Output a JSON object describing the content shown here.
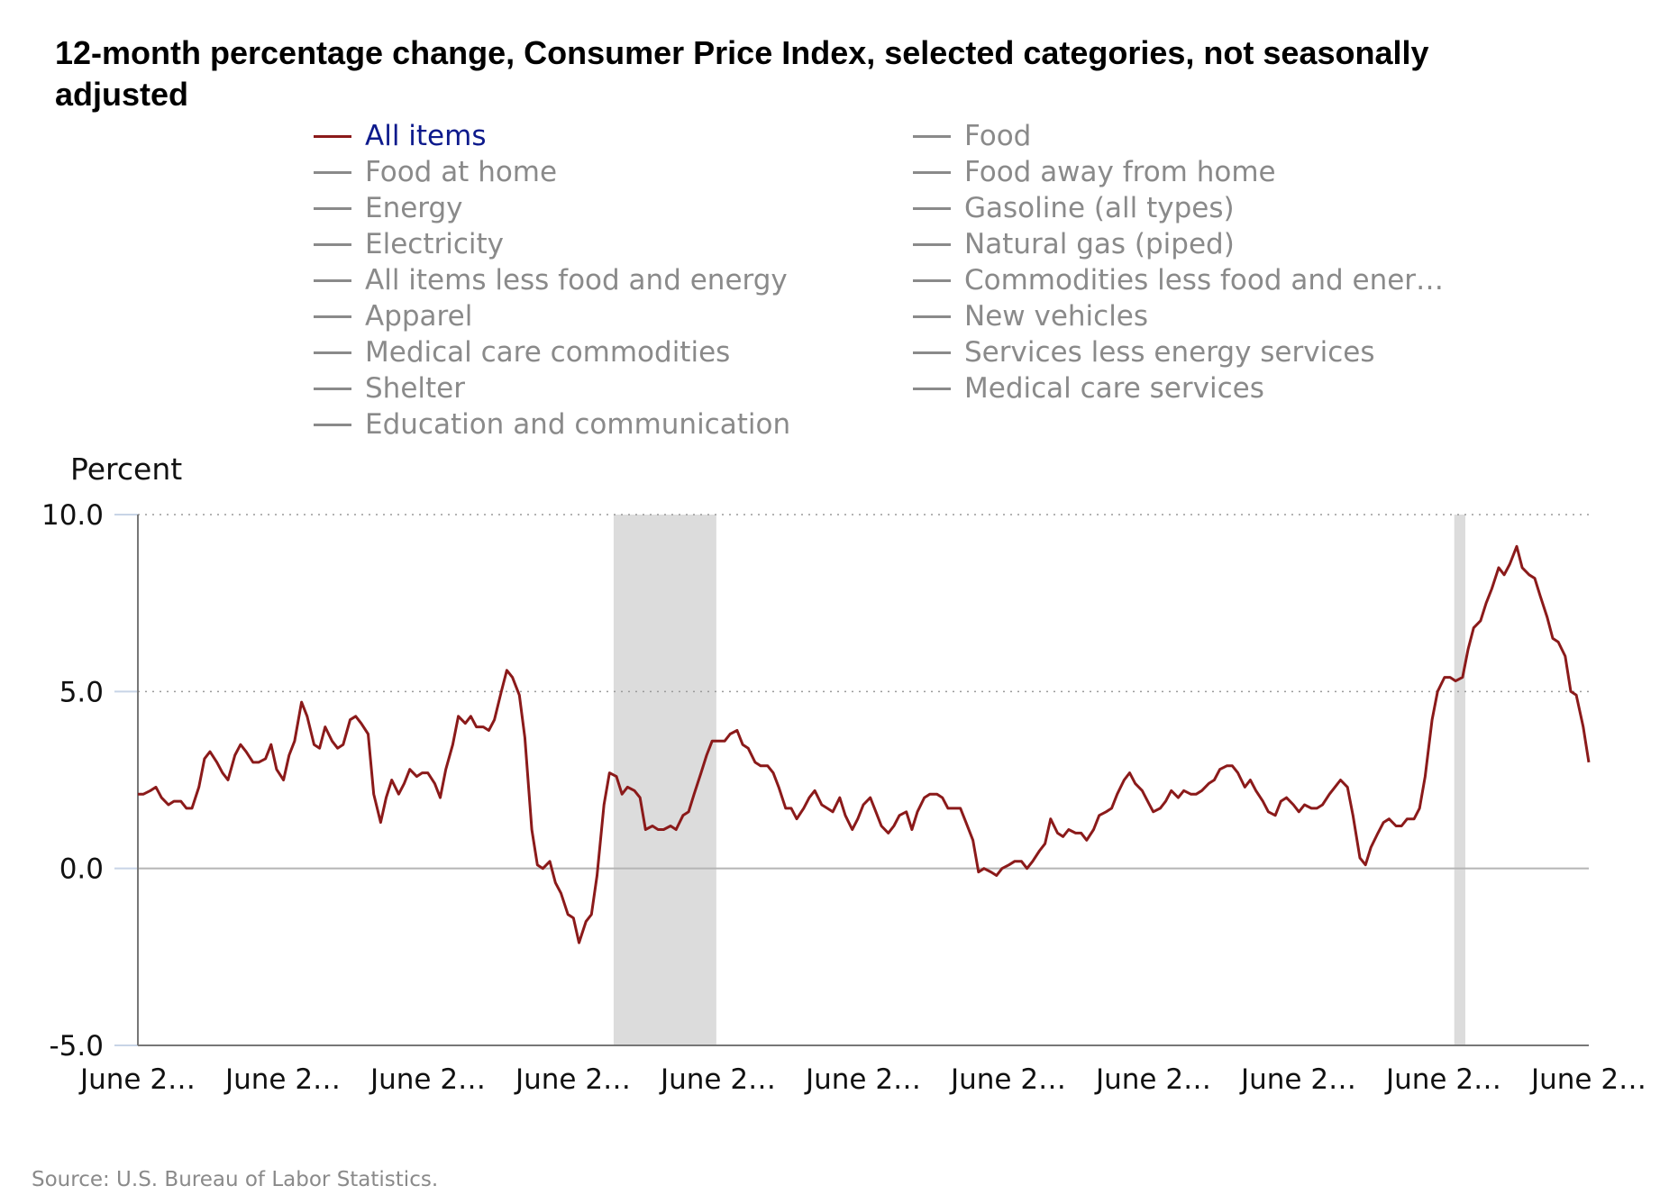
{
  "chart_data": {
    "type": "line",
    "title": "12-month percentage change, Consumer Price Index, selected categories, not seasonally adjusted",
    "ylabel": "Percent",
    "ylim": [
      -5.0,
      10.0
    ],
    "yticks": [
      "10.0",
      "5.0",
      "0.0",
      "-5.0"
    ],
    "xticks": [
      "June 2…",
      "June 2…",
      "June 2…",
      "June 2…",
      "June 2…",
      "June 2…",
      "June 2…",
      "June 2…",
      "June 2…",
      "June 2…",
      "June 2…"
    ],
    "grid": "horizontal dotted",
    "legend_position": "top",
    "legend": [
      {
        "label": "All items",
        "active": true,
        "color": "#8b1a1a"
      },
      {
        "label": "Food",
        "active": false,
        "color": "#8a8a8a"
      },
      {
        "label": "Food at home",
        "active": false,
        "color": "#8a8a8a"
      },
      {
        "label": "Food away from home",
        "active": false,
        "color": "#8a8a8a"
      },
      {
        "label": "Energy",
        "active": false,
        "color": "#8a8a8a"
      },
      {
        "label": "Gasoline (all types)",
        "active": false,
        "color": "#8a8a8a"
      },
      {
        "label": "Electricity",
        "active": false,
        "color": "#8a8a8a"
      },
      {
        "label": "Natural gas (piped)",
        "active": false,
        "color": "#8a8a8a"
      },
      {
        "label": "All items less food and energy",
        "active": false,
        "color": "#8a8a8a"
      },
      {
        "label": "Commodities less food and ener…",
        "active": false,
        "color": "#8a8a8a"
      },
      {
        "label": "Apparel",
        "active": false,
        "color": "#8a8a8a"
      },
      {
        "label": "New vehicles",
        "active": false,
        "color": "#8a8a8a"
      },
      {
        "label": "Medical care commodities",
        "active": false,
        "color": "#8a8a8a"
      },
      {
        "label": "Services less energy services",
        "active": false,
        "color": "#8a8a8a"
      },
      {
        "label": "Shelter",
        "active": false,
        "color": "#8a8a8a"
      },
      {
        "label": "Medical care services",
        "active": false,
        "color": "#8a8a8a"
      },
      {
        "label": "Education and communication",
        "active": false,
        "color": "#8a8a8a"
      }
    ],
    "recessions": [
      [
        0.227,
        0.3
      ]
    ],
    "recessions_note": "",
    "recession_bands": [
      [
        34.3,
        41.7
      ],
      [
        94.9,
        95.7
      ]
    ],
    "series": [
      {
        "name": "All items",
        "color": "#8b1a1a",
        "points": [
          [
            0.0,
            2.1
          ],
          [
            0.4,
            2.1
          ],
          [
            0.9,
            2.2
          ],
          [
            1.3,
            2.3
          ],
          [
            1.7,
            2.0
          ],
          [
            2.2,
            1.8
          ],
          [
            2.6,
            1.9
          ],
          [
            3.1,
            1.9
          ],
          [
            3.5,
            1.7
          ],
          [
            3.9,
            1.7
          ],
          [
            4.4,
            2.3
          ],
          [
            4.8,
            3.1
          ],
          [
            5.2,
            3.3
          ],
          [
            5.7,
            3.0
          ],
          [
            6.1,
            2.7
          ],
          [
            6.5,
            2.5
          ],
          [
            7.0,
            3.2
          ],
          [
            7.4,
            3.5
          ],
          [
            7.8,
            3.3
          ],
          [
            8.3,
            3.0
          ],
          [
            8.7,
            3.0
          ],
          [
            9.2,
            3.1
          ],
          [
            9.6,
            3.5
          ],
          [
            10.0,
            2.8
          ],
          [
            10.5,
            2.5
          ],
          [
            10.9,
            3.2
          ],
          [
            11.3,
            3.6
          ],
          [
            11.8,
            4.7
          ],
          [
            12.2,
            4.3
          ],
          [
            12.7,
            3.5
          ],
          [
            13.1,
            3.4
          ],
          [
            13.5,
            4.0
          ],
          [
            14.0,
            3.6
          ],
          [
            14.4,
            3.4
          ],
          [
            14.8,
            3.5
          ],
          [
            15.3,
            4.2
          ],
          [
            15.7,
            4.3
          ],
          [
            16.1,
            4.1
          ],
          [
            16.6,
            3.8
          ],
          [
            17.0,
            2.1
          ],
          [
            17.5,
            1.3
          ],
          [
            17.9,
            2.0
          ],
          [
            18.3,
            2.5
          ],
          [
            18.8,
            2.1
          ],
          [
            19.2,
            2.4
          ],
          [
            19.6,
            2.8
          ],
          [
            20.1,
            2.6
          ],
          [
            20.5,
            2.7
          ],
          [
            20.9,
            2.7
          ],
          [
            21.4,
            2.4
          ],
          [
            21.8,
            2.0
          ],
          [
            22.2,
            2.8
          ],
          [
            22.7,
            3.5
          ],
          [
            23.1,
            4.3
          ],
          [
            23.6,
            4.1
          ],
          [
            24.0,
            4.3
          ],
          [
            24.4,
            4.0
          ],
          [
            24.9,
            4.0
          ],
          [
            25.3,
            3.9
          ],
          [
            25.7,
            4.2
          ],
          [
            26.2,
            5.0
          ],
          [
            26.6,
            5.6
          ],
          [
            27.0,
            5.4
          ],
          [
            27.5,
            4.9
          ],
          [
            27.9,
            3.7
          ],
          [
            28.4,
            1.1
          ],
          [
            28.8,
            0.1
          ],
          [
            29.2,
            0.0
          ],
          [
            29.7,
            0.2
          ],
          [
            30.1,
            -0.4
          ],
          [
            30.5,
            -0.7
          ],
          [
            31.0,
            -1.3
          ],
          [
            31.4,
            -1.4
          ],
          [
            31.8,
            -2.1
          ],
          [
            32.3,
            -1.5
          ],
          [
            32.7,
            -1.3
          ],
          [
            33.1,
            -0.2
          ],
          [
            33.6,
            1.8
          ],
          [
            34.0,
            2.7
          ],
          [
            34.5,
            2.6
          ],
          [
            34.9,
            2.1
          ],
          [
            35.3,
            2.3
          ],
          [
            35.8,
            2.2
          ],
          [
            36.2,
            2.0
          ],
          [
            36.6,
            1.1
          ],
          [
            37.1,
            1.2
          ],
          [
            37.5,
            1.1
          ],
          [
            37.9,
            1.1
          ],
          [
            38.4,
            1.2
          ],
          [
            38.8,
            1.1
          ],
          [
            39.3,
            1.5
          ],
          [
            39.7,
            1.6
          ],
          [
            40.1,
            2.1
          ],
          [
            40.6,
            2.7
          ],
          [
            41.0,
            3.2
          ],
          [
            41.4,
            3.6
          ],
          [
            41.9,
            3.6
          ],
          [
            42.3,
            3.6
          ],
          [
            42.7,
            3.8
          ],
          [
            43.2,
            3.9
          ],
          [
            43.6,
            3.5
          ],
          [
            44.0,
            3.4
          ],
          [
            44.5,
            3.0
          ],
          [
            44.9,
            2.9
          ],
          [
            45.4,
            2.9
          ],
          [
            45.8,
            2.7
          ],
          [
            46.2,
            2.3
          ],
          [
            46.7,
            1.7
          ],
          [
            47.1,
            1.7
          ],
          [
            47.5,
            1.4
          ],
          [
            48.0,
            1.7
          ],
          [
            48.4,
            2.0
          ],
          [
            48.8,
            2.2
          ],
          [
            49.3,
            1.8
          ],
          [
            49.7,
            1.7
          ],
          [
            50.1,
            1.6
          ],
          [
            50.6,
            2.0
          ],
          [
            51.0,
            1.5
          ],
          [
            51.5,
            1.1
          ],
          [
            51.9,
            1.4
          ],
          [
            52.3,
            1.8
          ],
          [
            52.8,
            2.0
          ],
          [
            53.2,
            1.6
          ],
          [
            53.6,
            1.2
          ],
          [
            54.1,
            1.0
          ],
          [
            54.5,
            1.2
          ],
          [
            54.9,
            1.5
          ],
          [
            55.4,
            1.6
          ],
          [
            55.8,
            1.1
          ],
          [
            56.2,
            1.6
          ],
          [
            56.7,
            2.0
          ],
          [
            57.1,
            2.1
          ],
          [
            57.6,
            2.1
          ],
          [
            58.0,
            2.0
          ],
          [
            58.4,
            1.7
          ],
          [
            58.9,
            1.7
          ],
          [
            59.3,
            1.7
          ],
          [
            59.7,
            1.3
          ],
          [
            60.2,
            0.8
          ],
          [
            60.6,
            -0.1
          ],
          [
            61.0,
            0.0
          ],
          [
            61.5,
            -0.1
          ],
          [
            61.9,
            -0.2
          ],
          [
            62.3,
            0.0
          ],
          [
            62.8,
            0.1
          ],
          [
            63.2,
            0.2
          ],
          [
            63.7,
            0.2
          ],
          [
            64.1,
            0.0
          ],
          [
            64.5,
            0.2
          ],
          [
            65.0,
            0.5
          ],
          [
            65.4,
            0.7
          ],
          [
            65.8,
            1.4
          ],
          [
            66.3,
            1.0
          ],
          [
            66.7,
            0.9
          ],
          [
            67.1,
            1.1
          ],
          [
            67.6,
            1.0
          ],
          [
            68.0,
            1.0
          ],
          [
            68.4,
            0.8
          ],
          [
            68.9,
            1.1
          ],
          [
            69.3,
            1.5
          ],
          [
            69.8,
            1.6
          ],
          [
            70.2,
            1.7
          ],
          [
            70.6,
            2.1
          ],
          [
            71.1,
            2.5
          ],
          [
            71.5,
            2.7
          ],
          [
            71.9,
            2.4
          ],
          [
            72.4,
            2.2
          ],
          [
            72.8,
            1.9
          ],
          [
            73.2,
            1.6
          ],
          [
            73.7,
            1.7
          ],
          [
            74.1,
            1.9
          ],
          [
            74.5,
            2.2
          ],
          [
            75.0,
            2.0
          ],
          [
            75.4,
            2.2
          ],
          [
            75.9,
            2.1
          ],
          [
            76.3,
            2.1
          ],
          [
            76.7,
            2.2
          ],
          [
            77.2,
            2.4
          ],
          [
            77.6,
            2.5
          ],
          [
            78.0,
            2.8
          ],
          [
            78.5,
            2.9
          ],
          [
            78.9,
            2.9
          ],
          [
            79.3,
            2.7
          ],
          [
            79.8,
            2.3
          ],
          [
            80.2,
            2.5
          ],
          [
            80.6,
            2.2
          ],
          [
            81.1,
            1.9
          ],
          [
            81.5,
            1.6
          ],
          [
            82.0,
            1.5
          ],
          [
            82.4,
            1.9
          ],
          [
            82.8,
            2.0
          ],
          [
            83.3,
            1.8
          ],
          [
            83.7,
            1.6
          ],
          [
            84.1,
            1.8
          ],
          [
            84.6,
            1.7
          ],
          [
            85.0,
            1.7
          ],
          [
            85.4,
            1.8
          ],
          [
            85.9,
            2.1
          ],
          [
            86.3,
            2.3
          ],
          [
            86.7,
            2.5
          ],
          [
            87.2,
            2.3
          ],
          [
            87.6,
            1.5
          ],
          [
            88.1,
            0.3
          ],
          [
            88.5,
            0.1
          ],
          [
            88.9,
            0.6
          ],
          [
            89.4,
            1.0
          ],
          [
            89.8,
            1.3
          ],
          [
            90.2,
            1.4
          ],
          [
            90.7,
            1.2
          ],
          [
            91.1,
            1.2
          ],
          [
            91.5,
            1.4
          ],
          [
            92.0,
            1.4
          ],
          [
            92.4,
            1.7
          ],
          [
            92.8,
            2.6
          ],
          [
            93.3,
            4.2
          ],
          [
            93.7,
            5.0
          ],
          [
            94.2,
            5.4
          ],
          [
            94.6,
            5.4
          ],
          [
            95.0,
            5.3
          ],
          [
            95.5,
            5.4
          ],
          [
            95.9,
            6.2
          ],
          [
            96.3,
            6.8
          ],
          [
            96.8,
            7.0
          ],
          [
            97.2,
            7.5
          ],
          [
            97.6,
            7.9
          ],
          [
            98.1,
            8.5
          ],
          [
            98.5,
            8.3
          ],
          [
            98.9,
            8.6
          ],
          [
            99.4,
            9.1
          ],
          [
            99.8,
            8.5
          ],
          [
            100.3,
            8.3
          ],
          [
            100.7,
            8.2
          ],
          [
            101.1,
            7.7
          ],
          [
            101.6,
            7.1
          ],
          [
            102.0,
            6.5
          ],
          [
            102.4,
            6.4
          ],
          [
            102.9,
            6.0
          ],
          [
            103.3,
            5.0
          ],
          [
            103.7,
            4.9
          ],
          [
            104.2,
            4.0
          ],
          [
            104.6,
            3.0
          ]
        ]
      }
    ],
    "x_range": [
      0,
      104.6
    ]
  },
  "source": "Source: U.S. Bureau of Labor Statistics."
}
